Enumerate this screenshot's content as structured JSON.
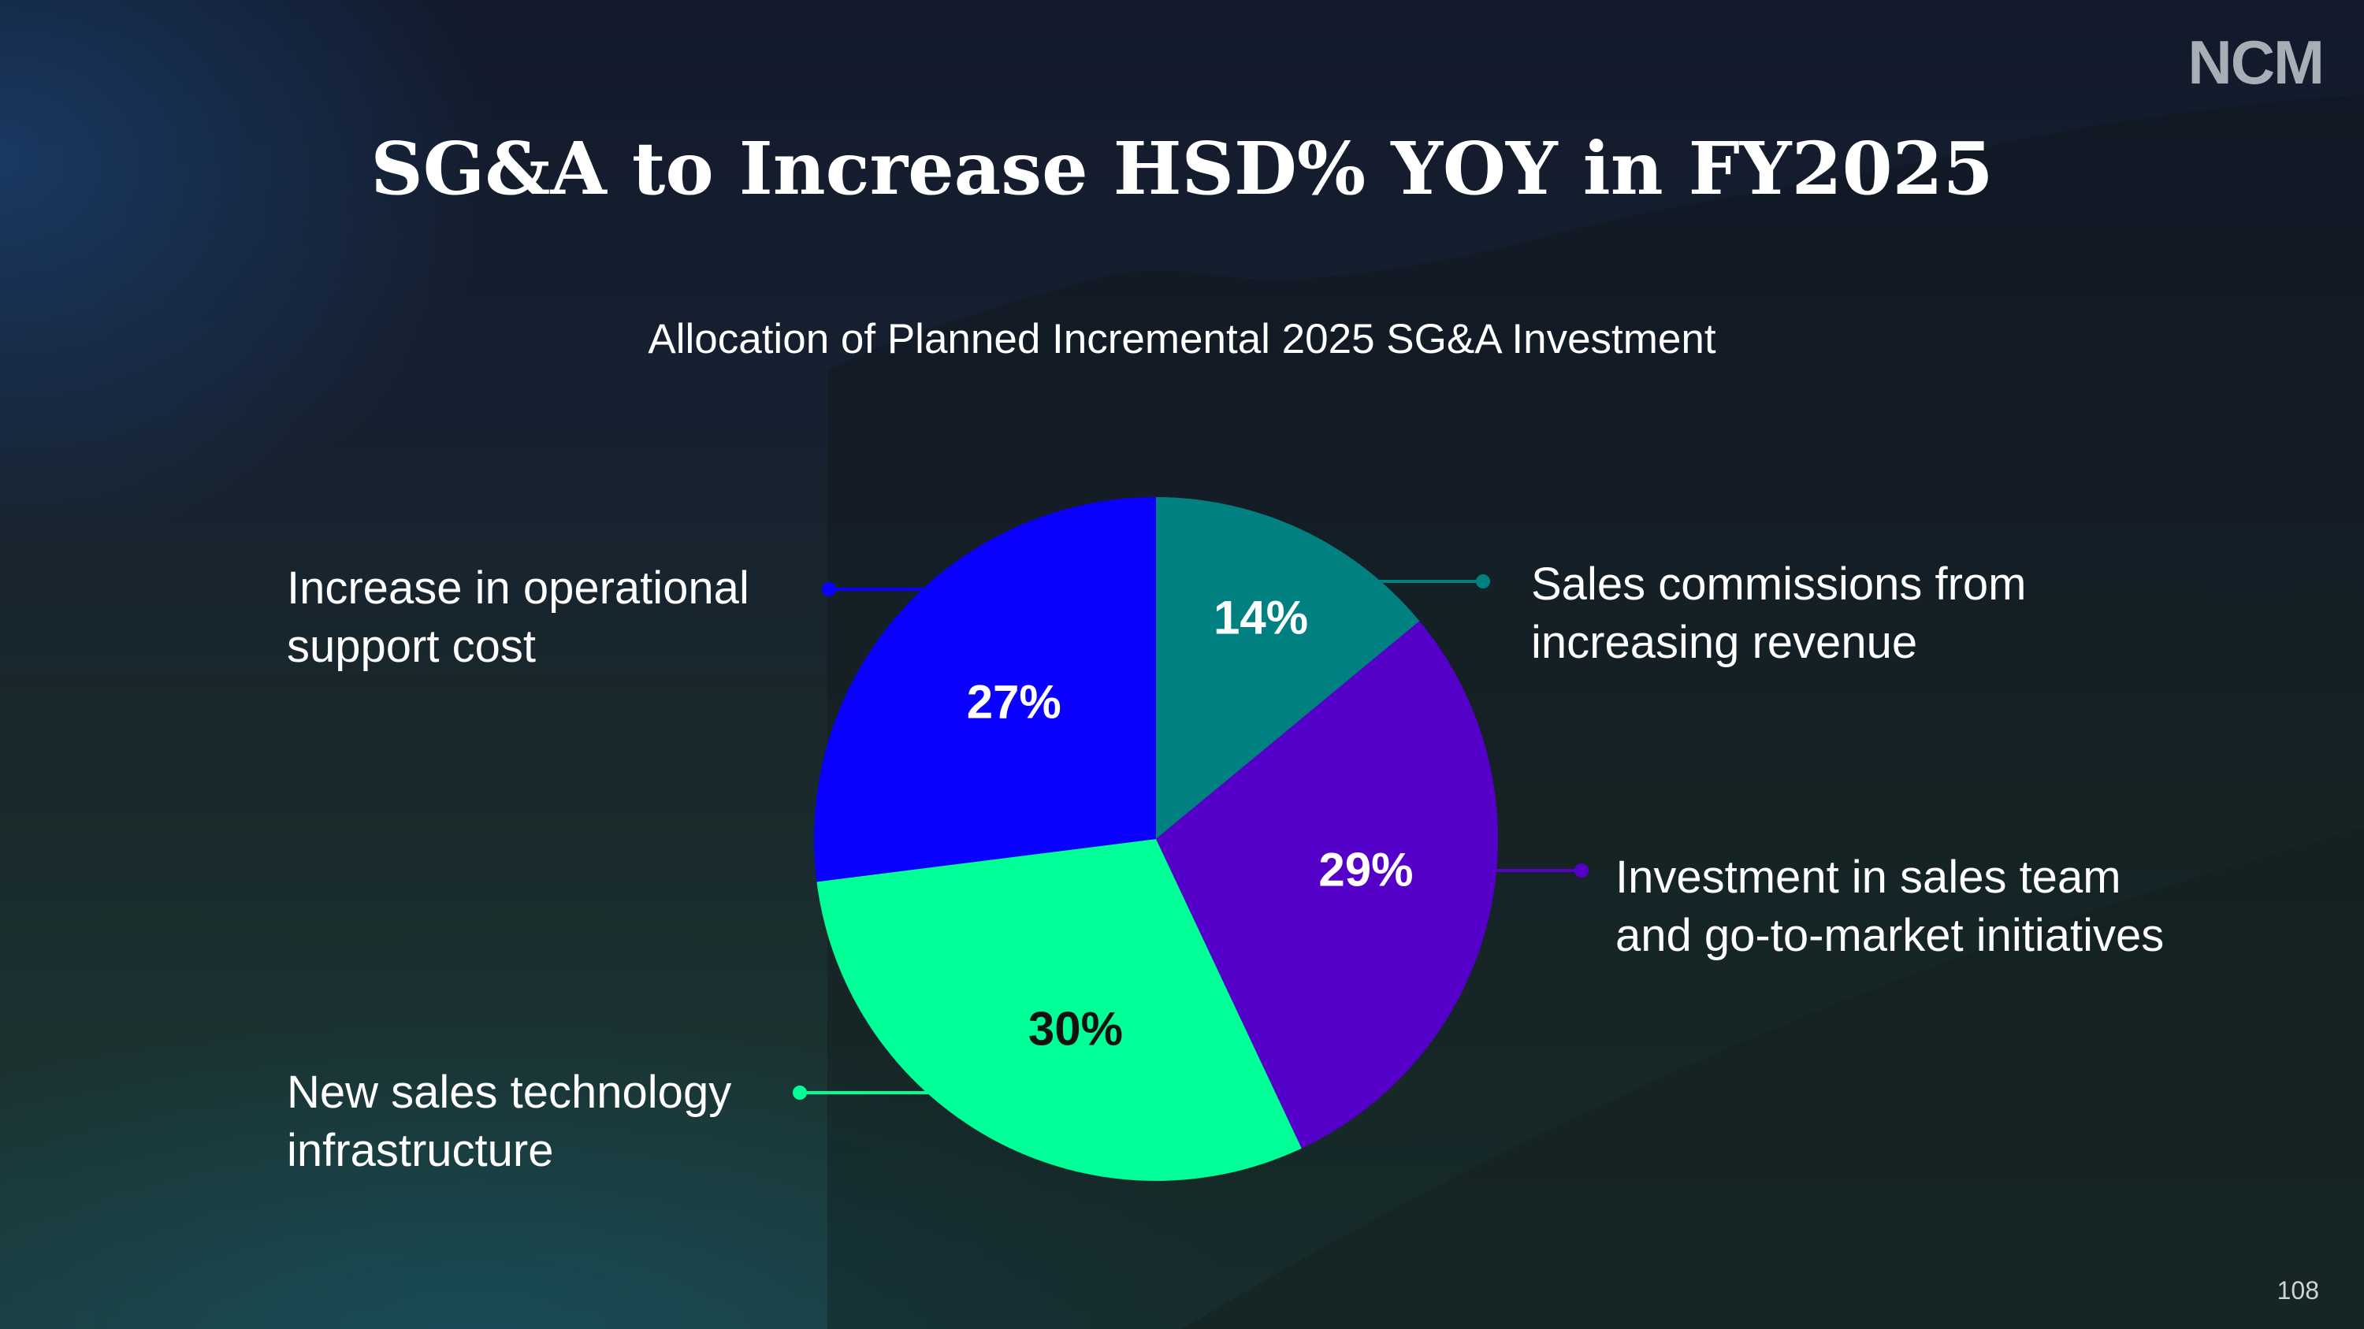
{
  "logo": "NCM",
  "title": "SG&A to Increase HSD% YOY in FY2025",
  "page_number": "108",
  "chart_data": {
    "type": "pie",
    "title": "Allocation of Planned Incremental 2025 SG&A Investment",
    "start": "12 o'clock, clockwise",
    "slices": [
      {
        "label": "Sales commissions from increasing revenue",
        "line1": "Sales commissions from",
        "line2": "increasing revenue",
        "value": 14,
        "display": "14%",
        "color": "#008080"
      },
      {
        "label": "Investment in sales team and go-to-market initiatives",
        "line1": "Investment in sales team",
        "line2": "and go-to-market initiatives",
        "value": 29,
        "display": "29%",
        "color": "#5500c8"
      },
      {
        "label": "New sales technology infrastructure",
        "line1": "New sales technology",
        "line2": "infrastructure",
        "value": 30,
        "display": "30%",
        "color": "#00ff96"
      },
      {
        "label": "Increase in operational support cost",
        "line1": "Increase in operational",
        "line2": "support cost",
        "value": 27,
        "display": "27%",
        "color": "#0a00ff"
      }
    ]
  }
}
